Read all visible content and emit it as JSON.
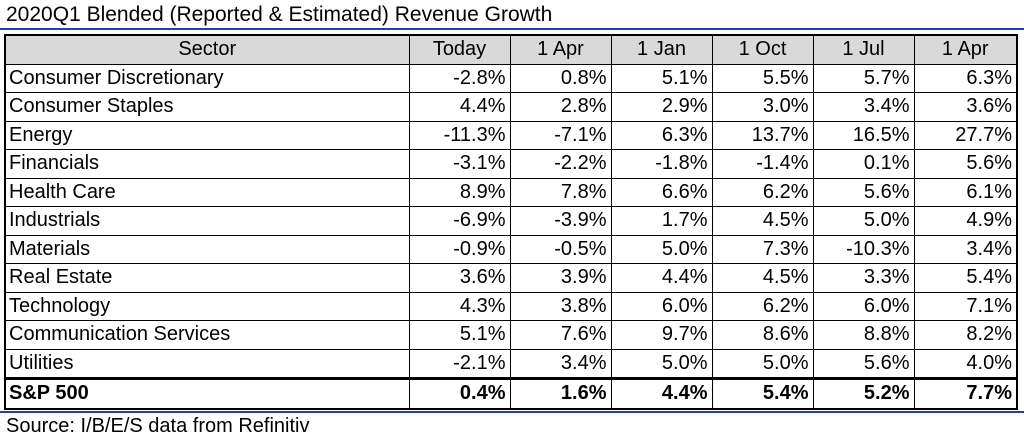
{
  "title": "2020Q1 Blended (Reported & Estimated) Revenue Growth",
  "source": "Source: I/B/E/S data from Refinitiv",
  "colors": {
    "rule": "#1f3fb4",
    "header_bg": "#d9d9d9"
  },
  "headers": [
    "Sector",
    "Today",
    "1 Apr",
    "1 Jan",
    "1 Oct",
    "1 Jul",
    "1 Apr"
  ],
  "rows": [
    {
      "sector": "Consumer Discretionary",
      "values": [
        "-2.8%",
        "0.8%",
        "5.1%",
        "5.5%",
        "5.7%",
        "6.3%"
      ]
    },
    {
      "sector": "Consumer Staples",
      "values": [
        "4.4%",
        "2.8%",
        "2.9%",
        "3.0%",
        "3.4%",
        "3.6%"
      ]
    },
    {
      "sector": "Energy",
      "values": [
        "-11.3%",
        "-7.1%",
        "6.3%",
        "13.7%",
        "16.5%",
        "27.7%"
      ]
    },
    {
      "sector": "Financials",
      "values": [
        "-3.1%",
        "-2.2%",
        "-1.8%",
        "-1.4%",
        "0.1%",
        "5.6%"
      ]
    },
    {
      "sector": "Health Care",
      "values": [
        "8.9%",
        "7.8%",
        "6.6%",
        "6.2%",
        "5.6%",
        "6.1%"
      ]
    },
    {
      "sector": "Industrials",
      "values": [
        "-6.9%",
        "-3.9%",
        "1.7%",
        "4.5%",
        "5.0%",
        "4.9%"
      ]
    },
    {
      "sector": "Materials",
      "values": [
        "-0.9%",
        "-0.5%",
        "5.0%",
        "7.3%",
        "-10.3%",
        "3.4%"
      ]
    },
    {
      "sector": "Real Estate",
      "values": [
        "3.6%",
        "3.9%",
        "4.4%",
        "4.5%",
        "3.3%",
        "5.4%"
      ]
    },
    {
      "sector": "Technology",
      "values": [
        "4.3%",
        "3.8%",
        "6.0%",
        "6.2%",
        "6.0%",
        "7.1%"
      ]
    },
    {
      "sector": "Communication Services",
      "values": [
        "5.1%",
        "7.6%",
        "9.7%",
        "8.6%",
        "8.8%",
        "8.2%"
      ]
    },
    {
      "sector": "Utilities",
      "values": [
        "-2.1%",
        "3.4%",
        "5.0%",
        "5.0%",
        "5.6%",
        "4.0%"
      ]
    }
  ],
  "total": {
    "sector": "S&P 500",
    "values": [
      "0.4%",
      "1.6%",
      "4.4%",
      "5.4%",
      "5.2%",
      "7.7%"
    ]
  }
}
